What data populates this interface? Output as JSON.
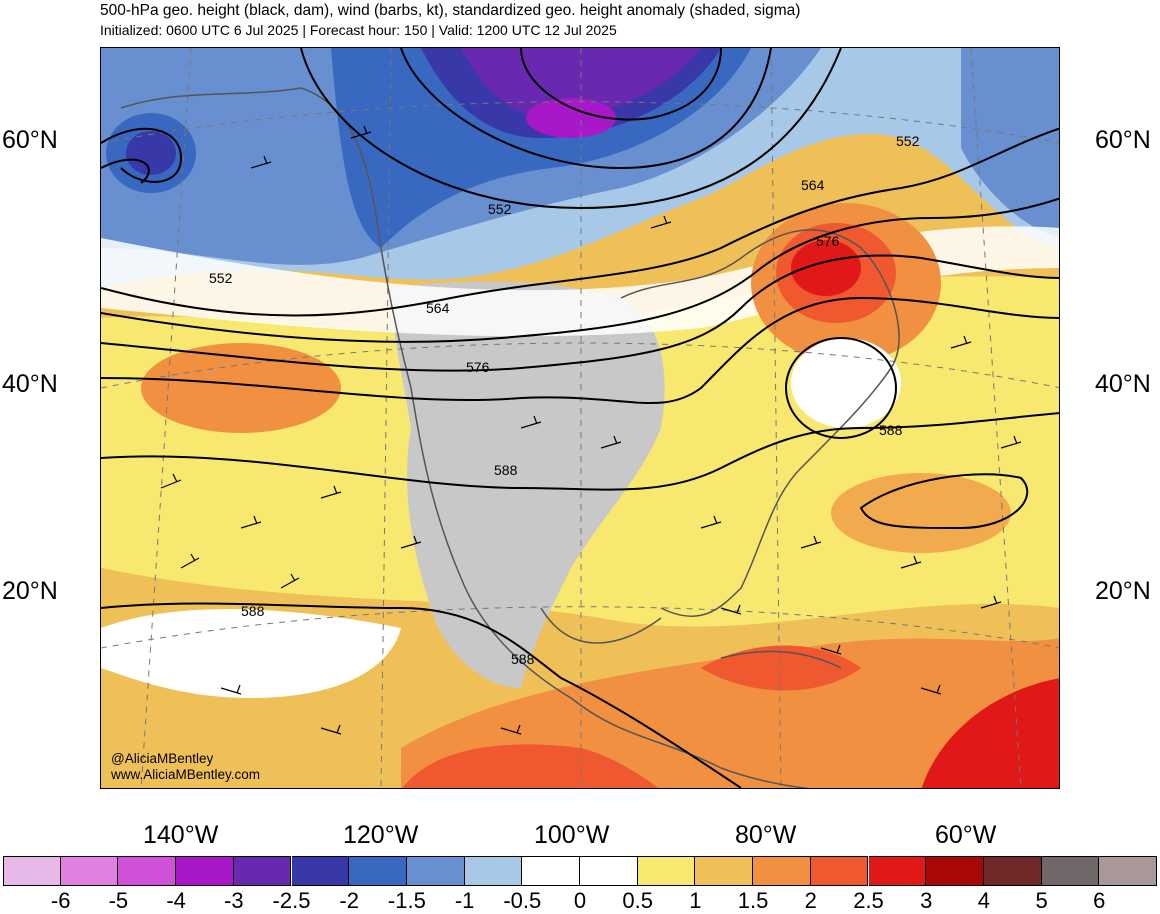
{
  "title": "500-hPa geo. height (black, dam), wind (barbs, kt), standardized geo. height anomaly (shaded, sigma)",
  "subtitle": "Initialized: 0600 UTC 6 Jul 2025 | Forecast hour: 150 | Valid: 1200 UTC 12 Jul 2025",
  "lat_labels": [
    "60°N",
    "40°N",
    "20°N"
  ],
  "lon_labels": [
    "140°W",
    "120°W",
    "100°W",
    "80°W",
    "60°W"
  ],
  "contour_labels": [
    "552",
    "552",
    "552",
    "564",
    "564",
    "576",
    "576",
    "588",
    "588",
    "588",
    "588"
  ],
  "credits": [
    "@AliciaMBentley",
    "www.AliciaMBentley.com"
  ],
  "colorbar": {
    "labels": [
      "-6",
      "-5",
      "-4",
      "-3",
      "-2.5",
      "-2",
      "-1.5",
      "-1",
      "-0.5",
      "0",
      "0.5",
      "1",
      "1.5",
      "2",
      "2.5",
      "3",
      "4",
      "5",
      "6"
    ],
    "colors": [
      "#e8b8e8",
      "#e080e0",
      "#d050d8",
      "#a818c8",
      "#6828b0",
      "#3838a8",
      "#3868c0",
      "#6890d0",
      "#a8c8e8",
      "#ffffff",
      "#ffffff",
      "#f8e870",
      "#f0c058",
      "#f09040",
      "#f05830",
      "#e01818",
      "#a80808",
      "#702828",
      "#706868",
      "#a89898"
    ]
  }
}
